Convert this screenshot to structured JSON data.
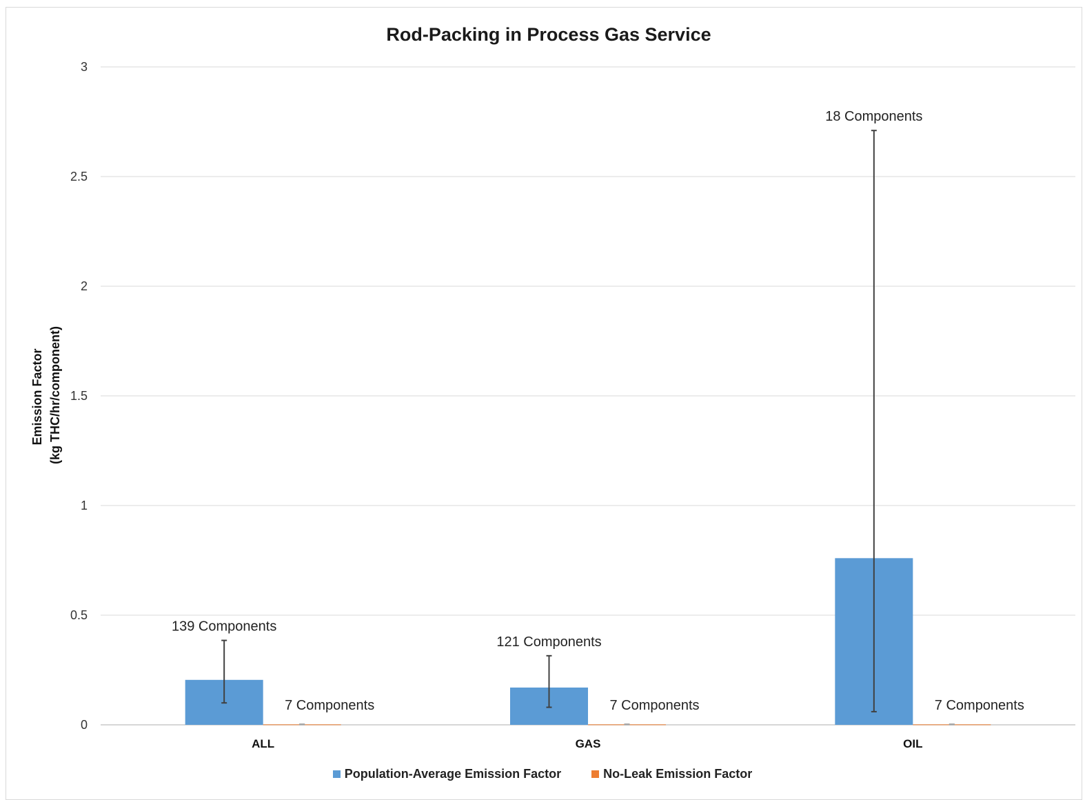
{
  "chart_data": {
    "type": "bar",
    "title": "Rod-Packing in Process Gas Service",
    "ylabel_line1": "Emission Factor",
    "ylabel_line2": "(kg THC/hr/component)",
    "xlabel": "",
    "ylim": [
      0,
      3
    ],
    "yticks": [
      0,
      0.5,
      1,
      1.5,
      2,
      2.5,
      3
    ],
    "grid": true,
    "legend_position": "bottom",
    "categories": [
      "ALL",
      "GAS",
      "OIL"
    ],
    "series": [
      {
        "name": "Population-Average Emission Factor",
        "color": "#5b9bd5",
        "values": [
          0.205,
          0.17,
          0.76
        ],
        "error_low": [
          0.1,
          0.08,
          0.06
        ],
        "error_high": [
          0.385,
          0.315,
          2.71
        ],
        "labels": [
          "139 Components",
          "121 Components",
          "18 Components"
        ]
      },
      {
        "name": "No-Leak Emission Factor",
        "color": "#ed7d31",
        "values": [
          0.002,
          0.002,
          0.002
        ],
        "error_low": [
          0.001,
          0.001,
          0.001
        ],
        "error_high": [
          0.003,
          0.003,
          0.003
        ],
        "labels": [
          "7 Components",
          "7 Components",
          "7 Components"
        ]
      }
    ]
  }
}
